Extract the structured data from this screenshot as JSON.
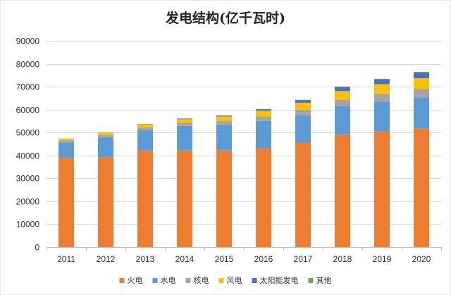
{
  "chart_data": {
    "type": "bar",
    "stacked": true,
    "title": "发电结构(亿千瓦时)",
    "xlabel": "",
    "ylabel": "",
    "categories": [
      "2011",
      "2012",
      "2013",
      "2014",
      "2015",
      "2016",
      "2017",
      "2018",
      "2019",
      "2020"
    ],
    "ylim": [
      0,
      90000
    ],
    "yticks": [
      0,
      10000,
      20000,
      30000,
      40000,
      50000,
      60000,
      70000,
      80000,
      90000
    ],
    "grid": "horizontal",
    "legend_position": "bottom",
    "series": [
      {
        "name": "火电",
        "color": "#ED7D31",
        "values": [
          39000,
          39300,
          42200,
          42300,
          42300,
          43300,
          45600,
          49200,
          50500,
          51800
        ]
      },
      {
        "name": "水电",
        "color": "#5B9BD5",
        "values": [
          6700,
          8600,
          8900,
          10600,
          11100,
          11700,
          11900,
          12300,
          13000,
          13500
        ]
      },
      {
        "name": "核电",
        "color": "#A5A5A5",
        "values": [
          900,
          1000,
          1100,
          1300,
          1700,
          2100,
          2500,
          2900,
          3500,
          3700
        ]
      },
      {
        "name": "风电",
        "color": "#FFC000",
        "values": [
          700,
          1000,
          1400,
          1600,
          1900,
          2400,
          3000,
          3700,
          4100,
          4700
        ]
      },
      {
        "name": "太阳能发电",
        "color": "#4472C4",
        "values": [
          10,
          40,
          90,
          240,
          390,
          660,
          1170,
          1780,
          2200,
          2600
        ]
      },
      {
        "name": "其他",
        "color": "#70AD47",
        "values": [
          60,
          70,
          80,
          90,
          100,
          110,
          120,
          130,
          140,
          150
        ]
      }
    ]
  }
}
